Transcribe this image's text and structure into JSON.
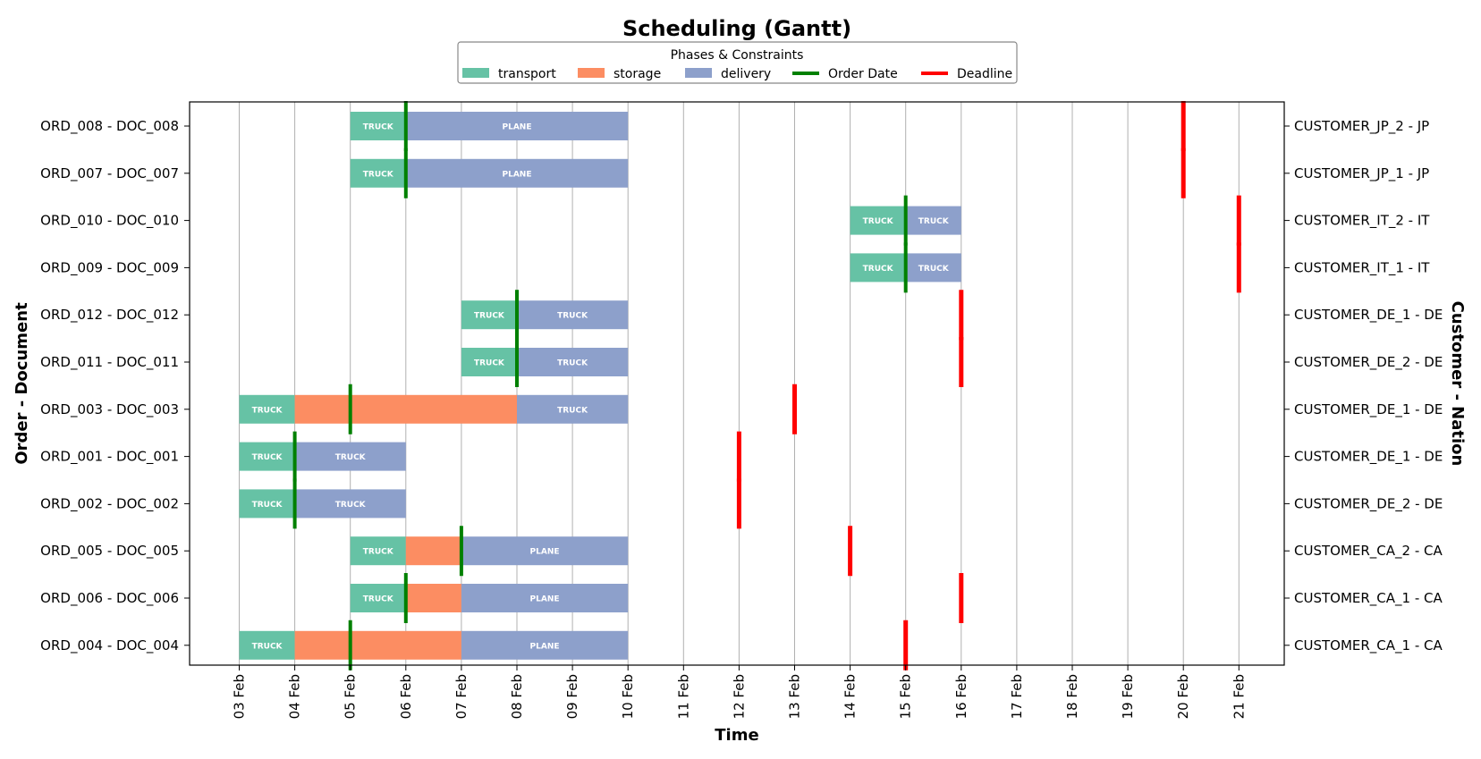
{
  "chart_data": {
    "type": "gantt",
    "title": "Scheduling (Gantt)",
    "xlabel": "Time",
    "ylabel_left": "Order - Document",
    "ylabel_right": "Customer - Nation",
    "x_ticks": [
      "03 Feb",
      "04 Feb",
      "05 Feb",
      "06 Feb",
      "07 Feb",
      "08 Feb",
      "09 Feb",
      "10 Feb",
      "11 Feb",
      "12 Feb",
      "13 Feb",
      "14 Feb",
      "15 Feb",
      "16 Feb",
      "17 Feb",
      "18 Feb",
      "19 Feb",
      "20 Feb",
      "21 Feb"
    ],
    "x_range": [
      "2025-02-02",
      "2025-02-22"
    ],
    "grid": "vertical",
    "legend": {
      "title": "Phases & Constraints",
      "placement": "top-center",
      "entries": [
        {
          "label": "transport",
          "kind": "patch",
          "color": "#66c2a5"
        },
        {
          "label": "storage",
          "kind": "patch",
          "color": "#fc8d62"
        },
        {
          "label": "delivery",
          "kind": "patch",
          "color": "#8da0cb"
        },
        {
          "label": "Order Date",
          "kind": "line",
          "color": "#008000"
        },
        {
          "label": "Deadline",
          "kind": "line",
          "color": "#ff0000"
        }
      ]
    },
    "colors": {
      "transport": "#66c2a5",
      "storage": "#fc8d62",
      "delivery": "#8da0cb",
      "order_date": "#008000",
      "deadline": "#ff0000"
    },
    "rows": [
      {
        "order_doc": "ORD_008 - DOC_008",
        "customer_nation": "CUSTOMER_JP_2 - JP",
        "order_date": "06 Feb",
        "deadline": "20 Feb",
        "phases": [
          {
            "phase": "transport",
            "start": "05 Feb",
            "end": "06 Feb",
            "label": "TRUCK"
          },
          {
            "phase": "delivery",
            "start": "06 Feb",
            "end": "10 Feb",
            "label": "PLANE"
          }
        ]
      },
      {
        "order_doc": "ORD_007 - DOC_007",
        "customer_nation": "CUSTOMER_JP_1 - JP",
        "order_date": "06 Feb",
        "deadline": "20 Feb",
        "phases": [
          {
            "phase": "transport",
            "start": "05 Feb",
            "end": "06 Feb",
            "label": "TRUCK"
          },
          {
            "phase": "delivery",
            "start": "06 Feb",
            "end": "10 Feb",
            "label": "PLANE"
          }
        ]
      },
      {
        "order_doc": "ORD_010 - DOC_010",
        "customer_nation": "CUSTOMER_IT_2 - IT",
        "order_date": "15 Feb",
        "deadline": "21 Feb",
        "phases": [
          {
            "phase": "transport",
            "start": "14 Feb",
            "end": "15 Feb",
            "label": "TRUCK"
          },
          {
            "phase": "delivery",
            "start": "15 Feb",
            "end": "16 Feb",
            "label": "TRUCK"
          }
        ]
      },
      {
        "order_doc": "ORD_009 - DOC_009",
        "customer_nation": "CUSTOMER_IT_1 - IT",
        "order_date": "15 Feb",
        "deadline": "21 Feb",
        "phases": [
          {
            "phase": "transport",
            "start": "14 Feb",
            "end": "15 Feb",
            "label": "TRUCK"
          },
          {
            "phase": "delivery",
            "start": "15 Feb",
            "end": "16 Feb",
            "label": "TRUCK"
          }
        ]
      },
      {
        "order_doc": "ORD_012 - DOC_012",
        "customer_nation": "CUSTOMER_DE_1 - DE",
        "order_date": "08 Feb",
        "deadline": "16 Feb",
        "phases": [
          {
            "phase": "transport",
            "start": "07 Feb",
            "end": "08 Feb",
            "label": "TRUCK"
          },
          {
            "phase": "delivery",
            "start": "08 Feb",
            "end": "10 Feb",
            "label": "TRUCK"
          }
        ]
      },
      {
        "order_doc": "ORD_011 - DOC_011",
        "customer_nation": "CUSTOMER_DE_2 - DE",
        "order_date": "08 Feb",
        "deadline": "16 Feb",
        "phases": [
          {
            "phase": "transport",
            "start": "07 Feb",
            "end": "08 Feb",
            "label": "TRUCK"
          },
          {
            "phase": "delivery",
            "start": "08 Feb",
            "end": "10 Feb",
            "label": "TRUCK"
          }
        ]
      },
      {
        "order_doc": "ORD_003 - DOC_003",
        "customer_nation": "CUSTOMER_DE_1 - DE",
        "order_date": "05 Feb",
        "deadline": "13 Feb",
        "phases": [
          {
            "phase": "transport",
            "start": "03 Feb",
            "end": "04 Feb",
            "label": "TRUCK"
          },
          {
            "phase": "storage",
            "start": "04 Feb",
            "end": "08 Feb",
            "label": ""
          },
          {
            "phase": "delivery",
            "start": "08 Feb",
            "end": "10 Feb",
            "label": "TRUCK"
          }
        ]
      },
      {
        "order_doc": "ORD_001 - DOC_001",
        "customer_nation": "CUSTOMER_DE_1 - DE",
        "order_date": "04 Feb",
        "deadline": "12 Feb",
        "phases": [
          {
            "phase": "transport",
            "start": "03 Feb",
            "end": "04 Feb",
            "label": "TRUCK"
          },
          {
            "phase": "delivery",
            "start": "04 Feb",
            "end": "06 Feb",
            "label": "TRUCK"
          }
        ]
      },
      {
        "order_doc": "ORD_002 - DOC_002",
        "customer_nation": "CUSTOMER_DE_2 - DE",
        "order_date": "04 Feb",
        "deadline": "12 Feb",
        "phases": [
          {
            "phase": "transport",
            "start": "03 Feb",
            "end": "04 Feb",
            "label": "TRUCK"
          },
          {
            "phase": "delivery",
            "start": "04 Feb",
            "end": "06 Feb",
            "label": "TRUCK"
          }
        ]
      },
      {
        "order_doc": "ORD_005 - DOC_005",
        "customer_nation": "CUSTOMER_CA_2 - CA",
        "order_date": "07 Feb",
        "deadline": "14 Feb",
        "phases": [
          {
            "phase": "transport",
            "start": "05 Feb",
            "end": "06 Feb",
            "label": "TRUCK"
          },
          {
            "phase": "storage",
            "start": "06 Feb",
            "end": "07 Feb",
            "label": ""
          },
          {
            "phase": "delivery",
            "start": "07 Feb",
            "end": "10 Feb",
            "label": "PLANE"
          }
        ]
      },
      {
        "order_doc": "ORD_006 - DOC_006",
        "customer_nation": "CUSTOMER_CA_1 - CA",
        "order_date": "06 Feb",
        "deadline": "16 Feb",
        "phases": [
          {
            "phase": "transport",
            "start": "05 Feb",
            "end": "06 Feb",
            "label": "TRUCK"
          },
          {
            "phase": "storage",
            "start": "06 Feb",
            "end": "07 Feb",
            "label": ""
          },
          {
            "phase": "delivery",
            "start": "07 Feb",
            "end": "10 Feb",
            "label": "PLANE"
          }
        ]
      },
      {
        "order_doc": "ORD_004 - DOC_004",
        "customer_nation": "CUSTOMER_CA_1 - CA",
        "order_date": "05 Feb",
        "deadline": "15 Feb",
        "phases": [
          {
            "phase": "transport",
            "start": "03 Feb",
            "end": "04 Feb",
            "label": "TRUCK"
          },
          {
            "phase": "storage",
            "start": "04 Feb",
            "end": "07 Feb",
            "label": ""
          },
          {
            "phase": "delivery",
            "start": "07 Feb",
            "end": "10 Feb",
            "label": "PLANE"
          }
        ]
      }
    ]
  }
}
